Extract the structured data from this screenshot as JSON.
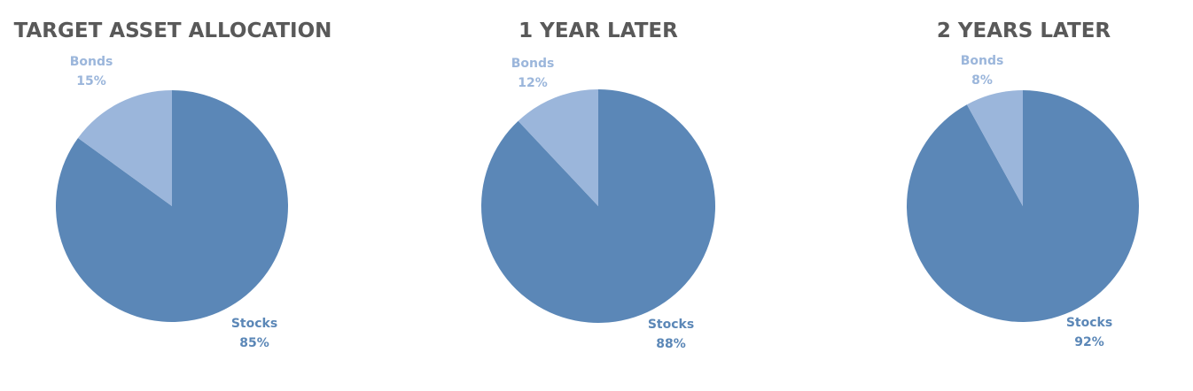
{
  "chart_data": [
    {
      "type": "pie",
      "title": "TARGET ASSET ALLOCATION",
      "slices": [
        {
          "label": "Stocks",
          "value": 85,
          "value_label": "85%",
          "color": "#5b87b7"
        },
        {
          "label": "Bonds",
          "value": 15,
          "value_label": "15%",
          "color": "#9bb6db"
        }
      ],
      "legend": "none"
    },
    {
      "type": "pie",
      "title": "1 YEAR LATER",
      "slices": [
        {
          "label": "Stocks",
          "value": 88,
          "value_label": "88%",
          "color": "#5b87b7"
        },
        {
          "label": "Bonds",
          "value": 12,
          "value_label": "12%",
          "color": "#9bb6db"
        }
      ],
      "legend": "none"
    },
    {
      "type": "pie",
      "title": "2 YEARS LATER",
      "slices": [
        {
          "label": "Stocks",
          "value": 92,
          "value_label": "92%",
          "color": "#5b87b7"
        },
        {
          "label": "Bonds",
          "value": 8,
          "value_label": "8%",
          "color": "#9bb6db"
        }
      ],
      "legend": "none"
    }
  ]
}
